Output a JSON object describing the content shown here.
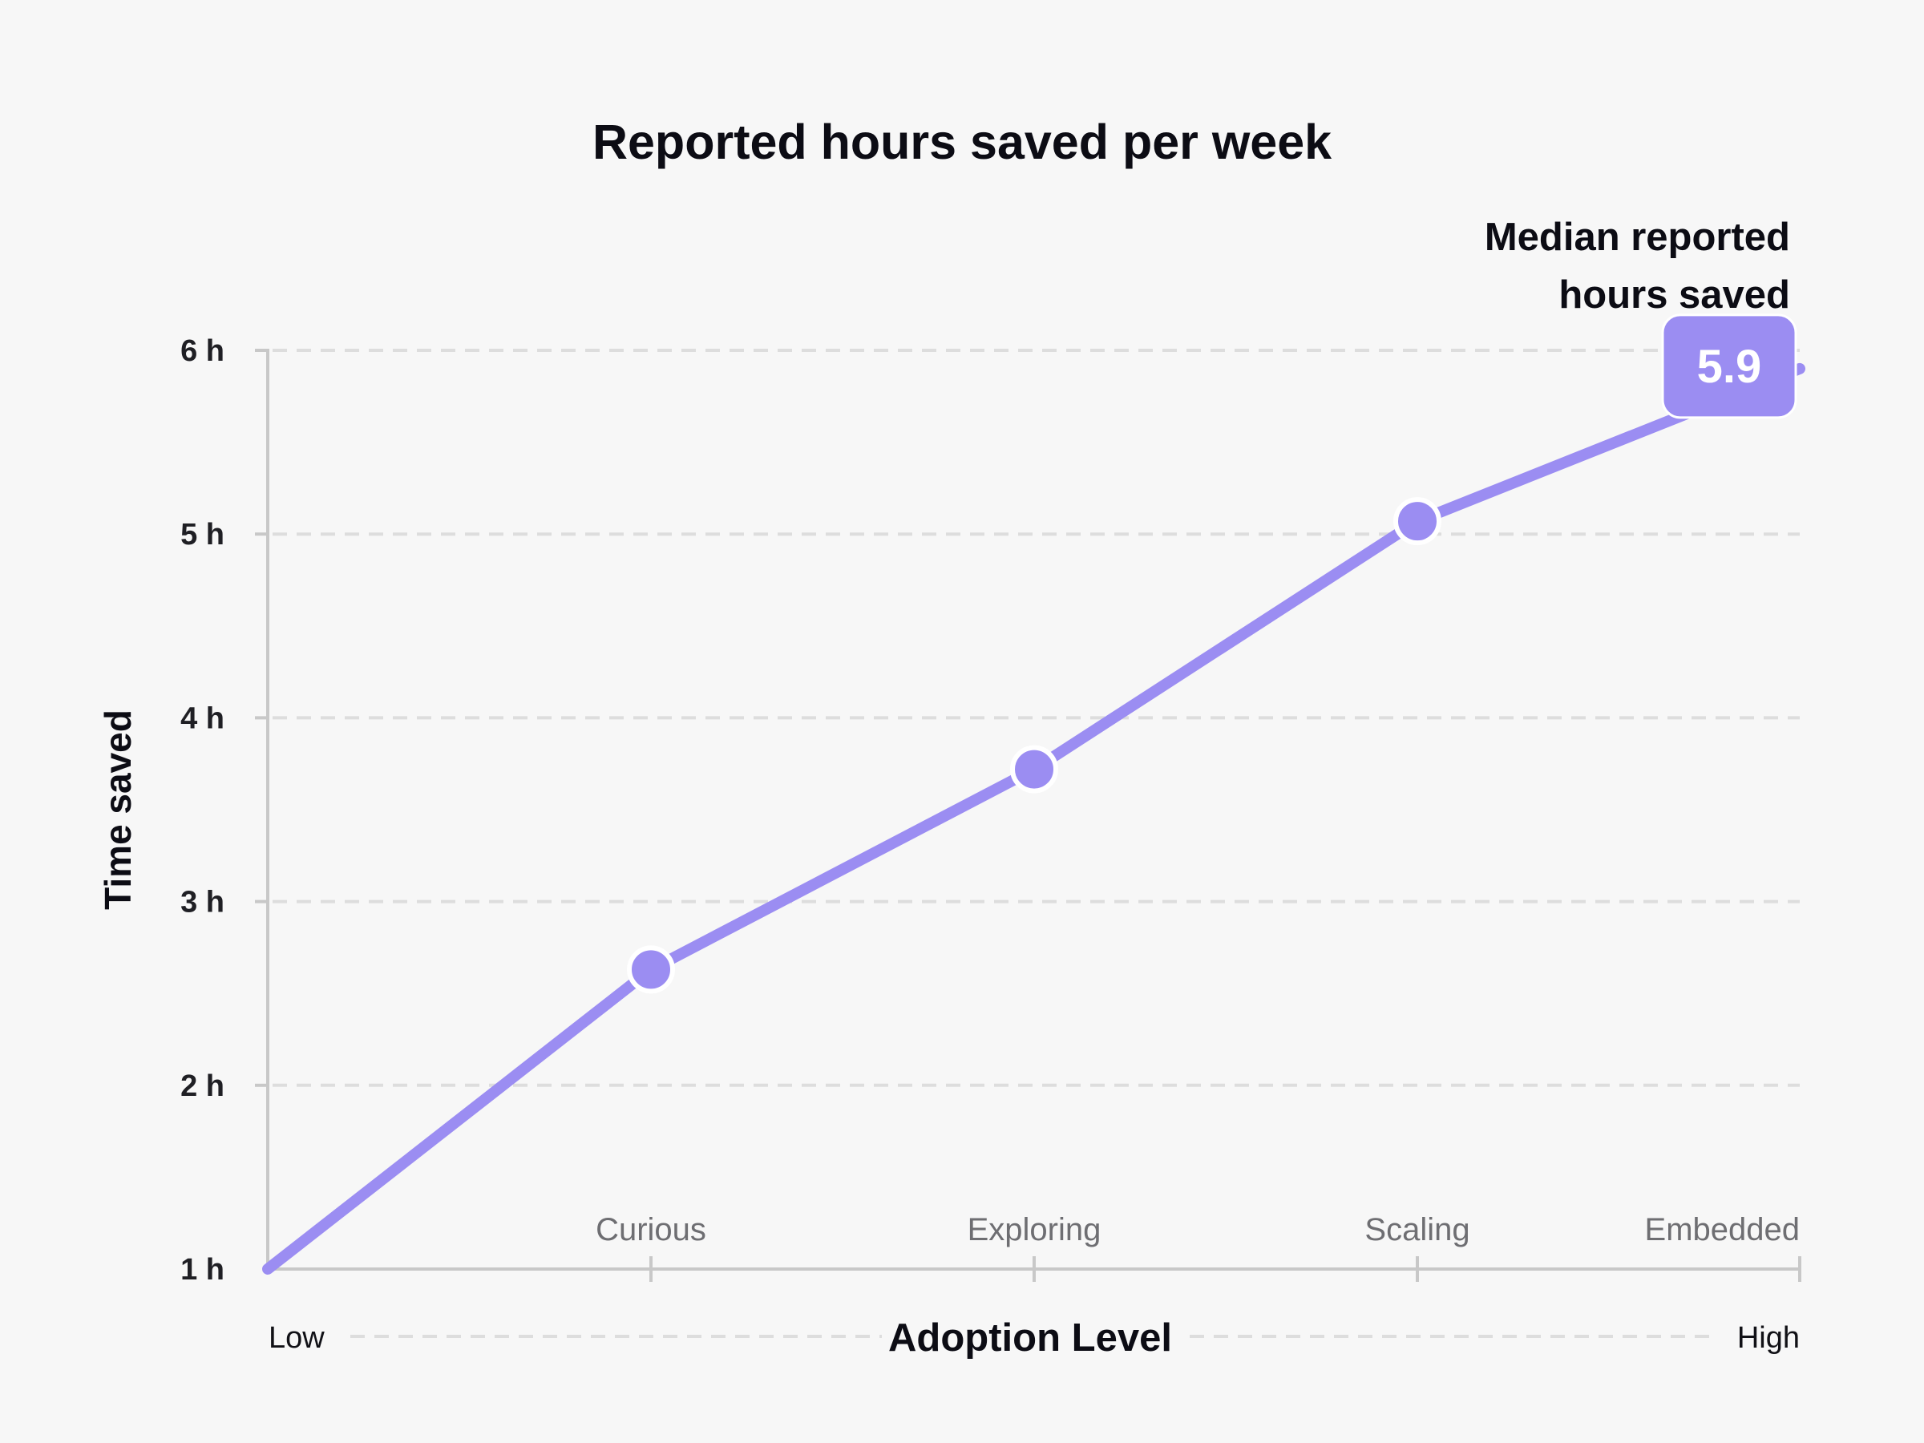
{
  "chart_data": {
    "type": "line",
    "title": "Reported hours saved per week",
    "ylabel": "Time saved",
    "xlabel": "Adoption Level",
    "x_axis_ends": {
      "low": "Low",
      "high": "High"
    },
    "ylim": [
      1,
      6
    ],
    "yticks": [
      1,
      2,
      3,
      4,
      5,
      6
    ],
    "ytick_labels": [
      "1 h",
      "2 h",
      "3 h",
      "4 h",
      "5 h",
      "6 h"
    ],
    "grid": "horizontal dashed",
    "categories": [
      "Low",
      "Curious",
      "Exploring",
      "Scaling",
      "Embedded"
    ],
    "x_tick_labels": [
      "Curious",
      "Exploring",
      "Scaling",
      "Embedded"
    ],
    "values": [
      1.0,
      2.63,
      3.72,
      5.07,
      5.9
    ],
    "annotation": {
      "lines": [
        "Median reported",
        "hours saved"
      ],
      "value_label": "5.9"
    },
    "colors": {
      "line": "#9b8df2",
      "marker": "#9b8df2",
      "badge": "#9b8df2",
      "axis": "#c8c8c8",
      "grid": "#dddddd"
    }
  }
}
